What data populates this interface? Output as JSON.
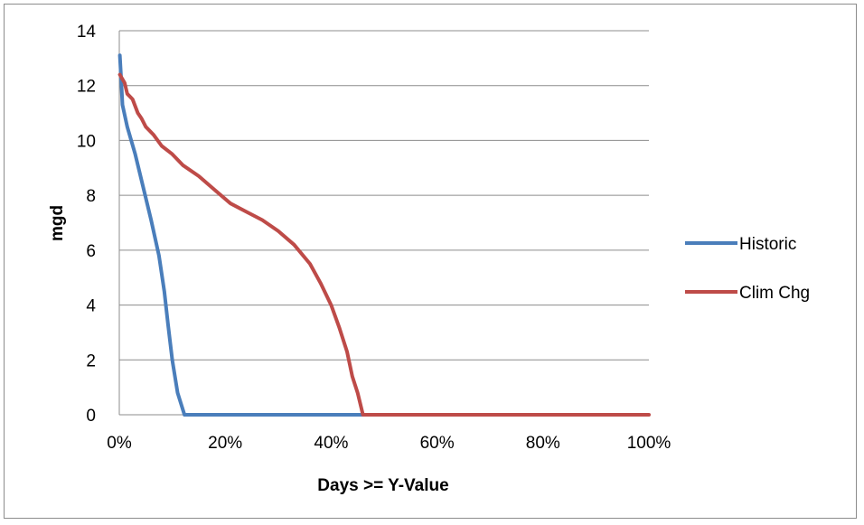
{
  "chart_data": {
    "type": "line",
    "title": "",
    "xlabel": "Days >= Y-Value",
    "ylabel": "mgd",
    "xlim": [
      0,
      100
    ],
    "ylim": [
      0,
      14
    ],
    "x_ticks": [
      "0%",
      "20%",
      "40%",
      "60%",
      "80%",
      "100%"
    ],
    "y_ticks": [
      "0",
      "2",
      "4",
      "6",
      "8",
      "10",
      "12",
      "14"
    ],
    "grid": "horizontal",
    "legend_position": "right",
    "series": [
      {
        "name": "Historic",
        "color": "#4a7ebb",
        "points": [
          [
            0.1,
            13.1
          ],
          [
            0.3,
            12.4
          ],
          [
            0.6,
            11.3
          ],
          [
            1.5,
            10.5
          ],
          [
            3,
            9.5
          ],
          [
            4.5,
            8.3
          ],
          [
            6,
            7.1
          ],
          [
            7.5,
            5.8
          ],
          [
            8.5,
            4.5
          ],
          [
            9.2,
            3.3
          ],
          [
            10,
            2.0
          ],
          [
            11,
            0.8
          ],
          [
            12.3,
            0.0
          ],
          [
            46,
            0.0
          ]
        ]
      },
      {
        "name": "Clim Chg",
        "color": "#be4b48",
        "points": [
          [
            0.1,
            12.4
          ],
          [
            1,
            12.1
          ],
          [
            1.5,
            11.7
          ],
          [
            2.5,
            11.5
          ],
          [
            3.5,
            11.0
          ],
          [
            4.2,
            10.8
          ],
          [
            5,
            10.5
          ],
          [
            6.5,
            10.2
          ],
          [
            8,
            9.8
          ],
          [
            10,
            9.5
          ],
          [
            12,
            9.1
          ],
          [
            15,
            8.7
          ],
          [
            18,
            8.2
          ],
          [
            21,
            7.7
          ],
          [
            24,
            7.4
          ],
          [
            27,
            7.1
          ],
          [
            30,
            6.7
          ],
          [
            33,
            6.2
          ],
          [
            36,
            5.5
          ],
          [
            38,
            4.8
          ],
          [
            40,
            4.0
          ],
          [
            41.5,
            3.2
          ],
          [
            43,
            2.3
          ],
          [
            44,
            1.4
          ],
          [
            45,
            0.8
          ],
          [
            46,
            0.0
          ],
          [
            100,
            0.0
          ]
        ]
      }
    ]
  }
}
